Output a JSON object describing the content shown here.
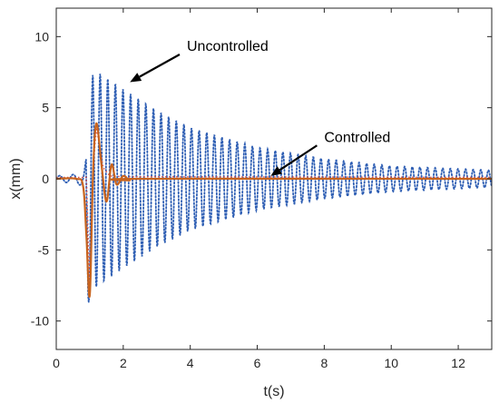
{
  "chart_data": {
    "type": "line",
    "title": "",
    "xlabel": "t(s)",
    "ylabel": "x(mm)",
    "xlim": [
      0,
      13
    ],
    "ylim": [
      -12,
      12
    ],
    "x_ticks": [
      0,
      2,
      4,
      6,
      8,
      10,
      12
    ],
    "y_ticks": [
      -10,
      -5,
      0,
      5,
      10
    ],
    "x_tick_labels": [
      "0",
      "2",
      "4",
      "6",
      "8",
      "10",
      "12"
    ],
    "y_tick_labels": [
      "-10",
      "-5",
      "0",
      "5",
      "10"
    ],
    "grid": false,
    "series": [
      {
        "style": "dotted",
        "color": "#2f5fb4",
        "description_points": {
          "x": [
            0.0,
            0.5,
            0.8,
            0.95,
            1.1,
            1.3,
            2.0,
            3.0,
            4.0,
            6.0,
            8.0,
            10.0,
            12.0,
            13.0
          ],
          "envelope_upper": [
            0.2,
            0.3,
            0.5,
            2.0,
            7.8,
            7.4,
            6.3,
            4.8,
            3.6,
            2.2,
            1.4,
            0.9,
            0.7,
            0.6
          ],
          "envelope_lower": [
            -0.2,
            -0.3,
            -0.5,
            -8.8,
            -7.8,
            -7.4,
            -6.3,
            -4.8,
            -3.6,
            -2.2,
            -1.4,
            -0.9,
            -0.7,
            -0.6
          ]
        },
        "frequency_hz": 4.4
      },
      {
        "style": "solid",
        "color": "#c8641e",
        "points": {
          "x": [
            0.0,
            0.6,
            0.8,
            0.9,
            1.0,
            1.1,
            1.2,
            1.35,
            1.5,
            1.65,
            1.8,
            2.0,
            2.2,
            2.5,
            13.0
          ],
          "y": [
            0.0,
            0.0,
            -0.5,
            -4.0,
            -8.2,
            0.5,
            3.9,
            1.0,
            -1.6,
            1.0,
            -0.4,
            0.2,
            -0.1,
            0.0,
            0.0
          ]
        }
      },
      {
        "style": "dotted",
        "color": "#d44a4a",
        "points": {
          "x": [
            0.0,
            0.9,
            1.0,
            1.1,
            1.2,
            1.4,
            1.6,
            2.0,
            13.0
          ],
          "y": [
            0.1,
            0.1,
            -7.5,
            0.8,
            3.6,
            0.8,
            0.2,
            0.15,
            0.1
          ]
        }
      }
    ],
    "annotations": [
      {
        "text": "Uncontrolled",
        "arrow_to": {
          "x": 2.2,
          "y": 6.8
        },
        "text_at": {
          "x": 3.9,
          "y": 9.0
        }
      },
      {
        "text": "Controlled",
        "arrow_to": {
          "x": 6.4,
          "y": 0.2
        },
        "text_at": {
          "x": 8.0,
          "y": 2.6
        }
      }
    ]
  }
}
